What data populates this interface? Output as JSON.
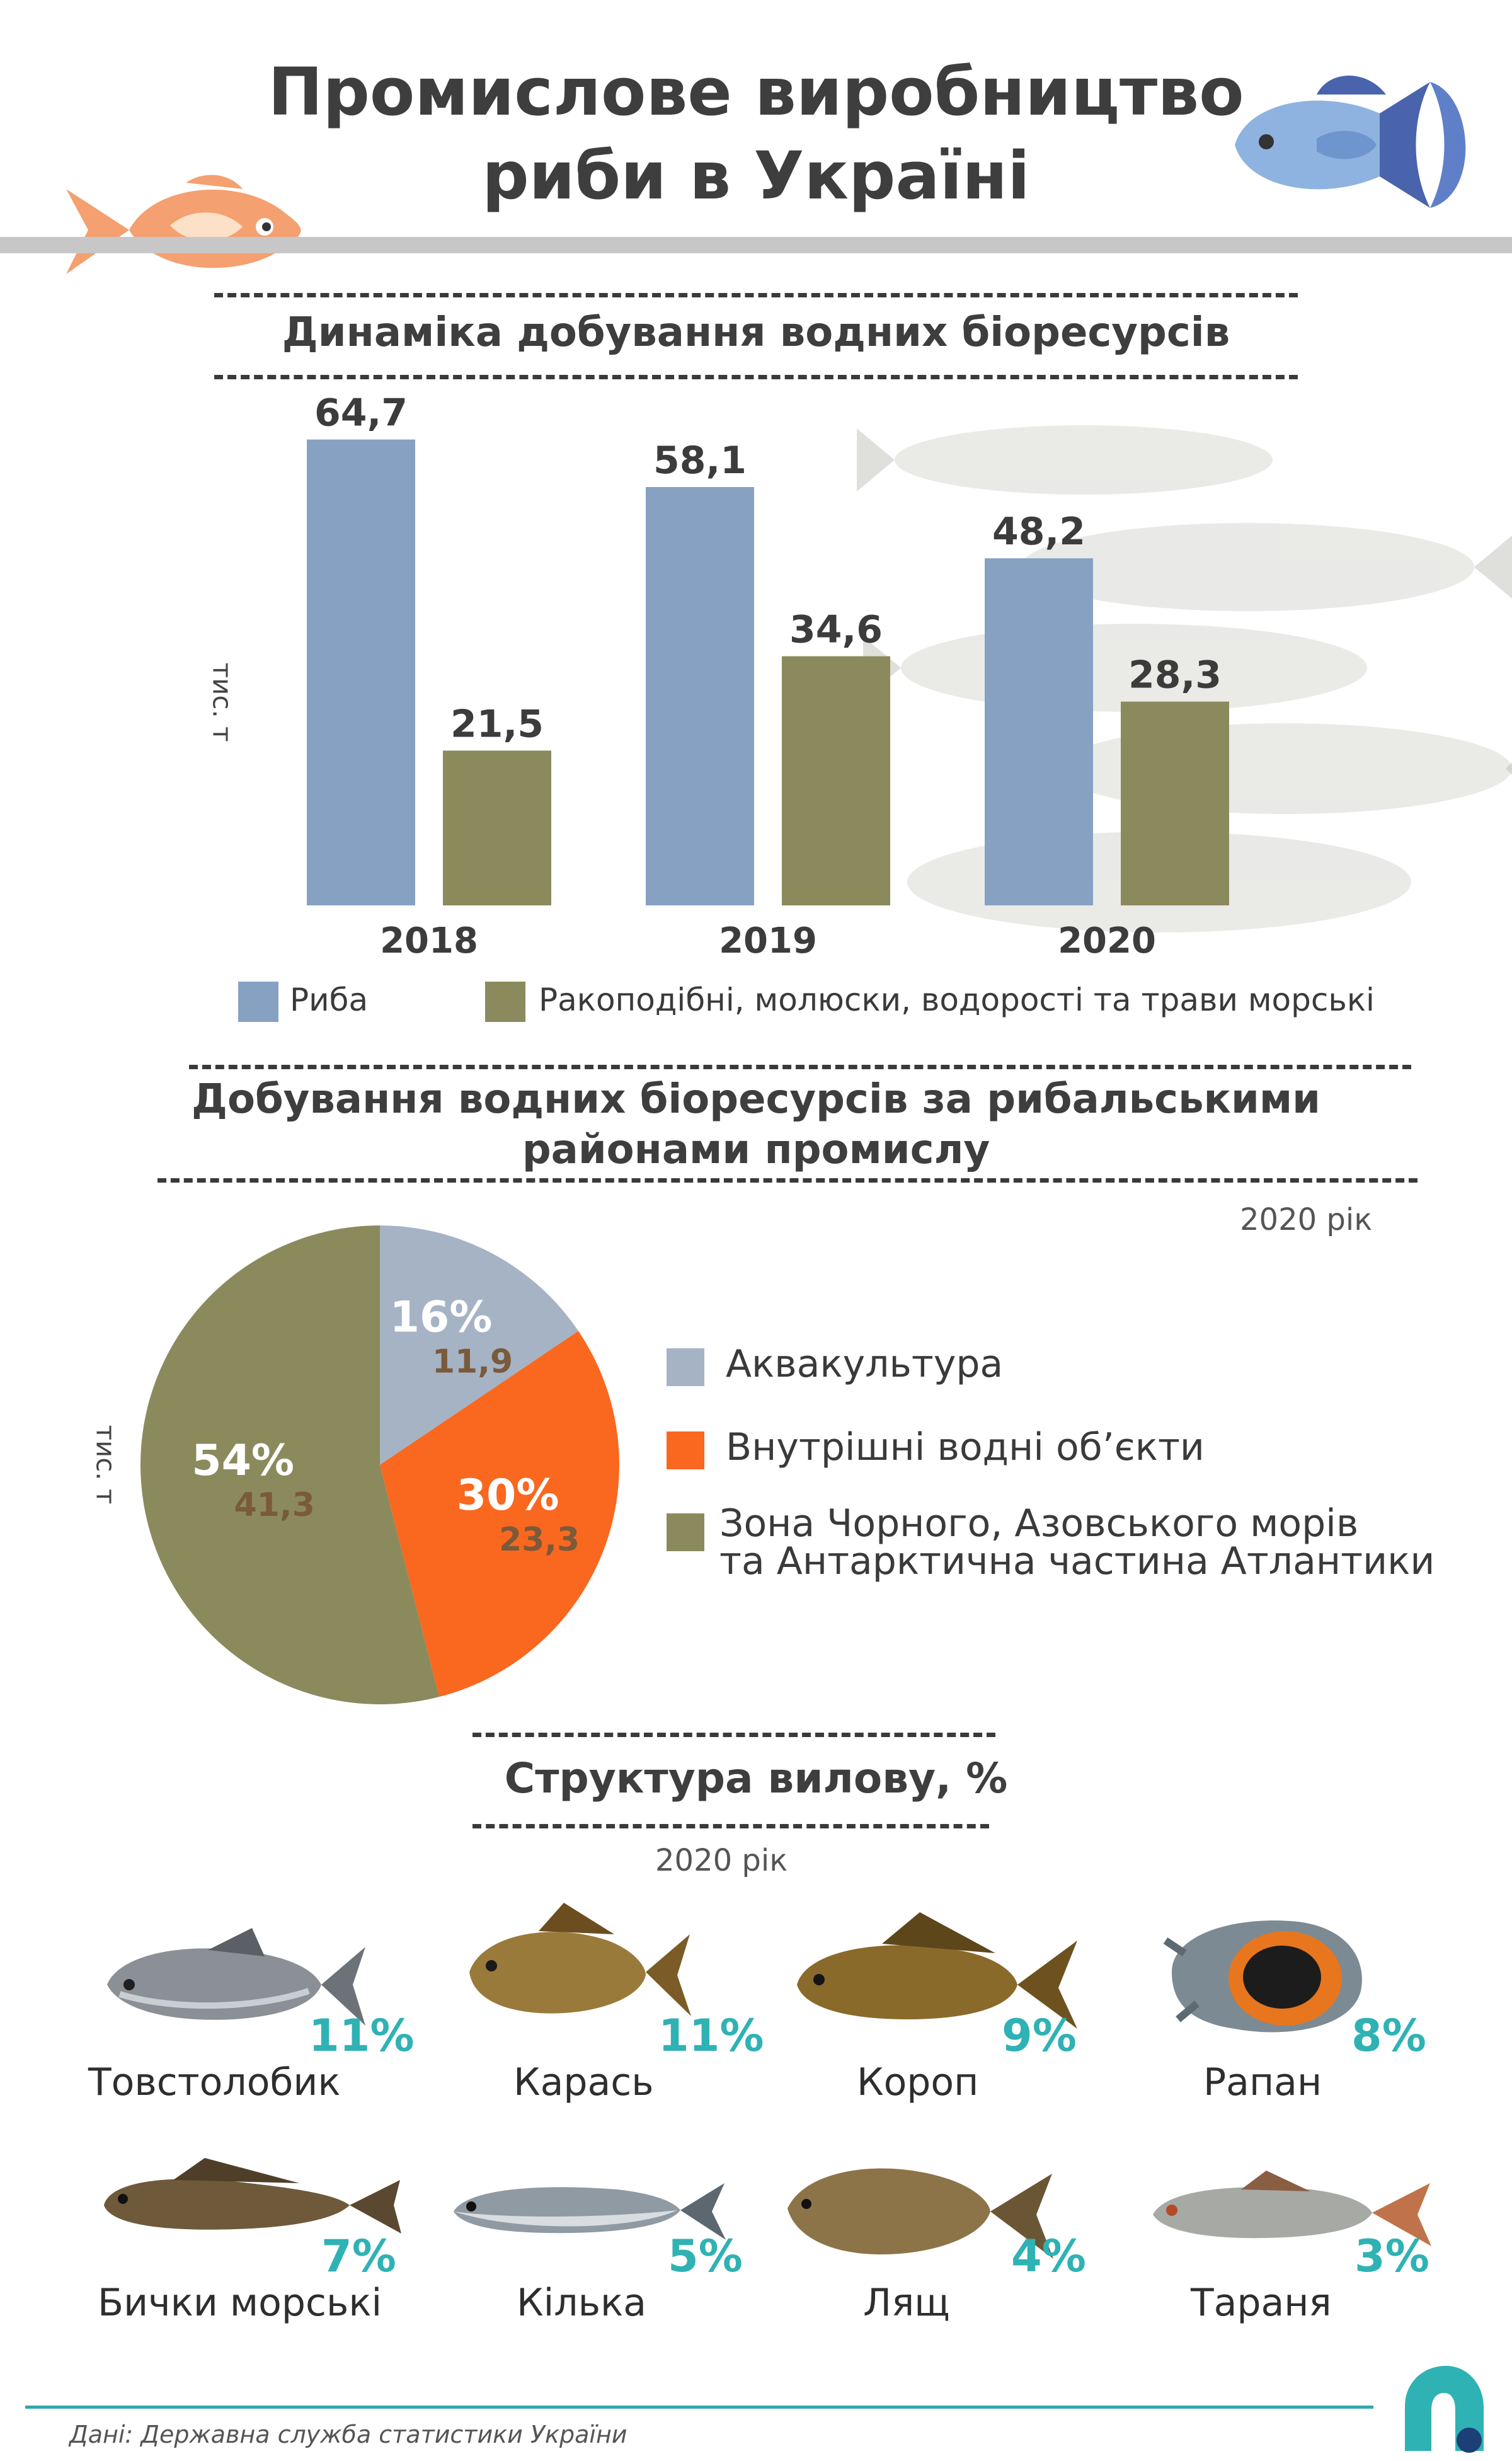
{
  "header": {
    "title_line1": "Промислове виробництво",
    "title_line2": "риби в Україні"
  },
  "section1": {
    "title": "Динаміка добування водних біоресурсів"
  },
  "section2": {
    "title_line1": "Добування водних біоресурсів за рибальськими",
    "title_line2": "районами промислу",
    "year_note": "2020 рік"
  },
  "section3": {
    "title": "Структура вилову, %",
    "year_note": "2020 рік",
    "items": [
      {
        "name": "Товстолобик",
        "pct": "11%",
        "icon": "bighead-carp-icon"
      },
      {
        "name": "Карась",
        "pct": "11%",
        "icon": "crucian-carp-icon"
      },
      {
        "name": "Короп",
        "pct": "9%",
        "icon": "carp-icon"
      },
      {
        "name": "Рапан",
        "pct": "8%",
        "icon": "rapana-shell-icon"
      },
      {
        "name": "Бички морські",
        "pct": "7%",
        "icon": "goby-icon"
      },
      {
        "name": "Кілька",
        "pct": "5%",
        "icon": "sprat-icon"
      },
      {
        "name": "Лящ",
        "pct": "4%",
        "icon": "bream-icon"
      },
      {
        "name": "Тараня",
        "pct": "3%",
        "icon": "roach-icon"
      }
    ]
  },
  "source": "Дані: Державна служба статистики України",
  "colors": {
    "fish_blue": "#87a1c3",
    "olive": "#8b8a5d",
    "orange": "#fa671f",
    "aqua_gray": "#a5b3c5",
    "teal": "#2fb2b4",
    "header_orange_fish": "#f4a070",
    "header_blue_fish": "#8fb3e0"
  },
  "chart_data": [
    {
      "type": "bar",
      "title": "Динаміка добування водних біоресурсів",
      "ylabel": "тис. т",
      "categories": [
        "2018",
        "2019",
        "2020"
      ],
      "series": [
        {
          "name": "Риба",
          "values": [
            64.7,
            58.1,
            48.2
          ],
          "labels": [
            "64,7",
            "58,1",
            "48,2"
          ],
          "color": "#87a1c3"
        },
        {
          "name": "Ракоподібні, молюски, водорості та трави морські",
          "values": [
            21.5,
            34.6,
            28.3
          ],
          "labels": [
            "21,5",
            "34,6",
            "28,3"
          ],
          "color": "#8b8a5d"
        }
      ],
      "ylim": [
        0,
        70
      ],
      "grid": false,
      "legend": "bottom"
    },
    {
      "type": "pie",
      "title": "Добування водних біоресурсів за рибальськими районами промислу",
      "unit": "тис. т",
      "slices": [
        {
          "name": "Аквакультура",
          "value": 11.9,
          "value_label": "11,9",
          "pct": 16,
          "pct_label": "16%",
          "color": "#a5b3c5"
        },
        {
          "name": "Внутрішні водні об’єкти",
          "value": 23.3,
          "value_label": "23,3",
          "pct": 30,
          "pct_label": "30%",
          "color": "#fa671f"
        },
        {
          "name_line1": "Зона Чорного, Азовського морів",
          "name_line2": "та Антарктична частина Атлантики",
          "value": 41.3,
          "value_label": "41,3",
          "pct": 54,
          "pct_label": "54%",
          "color": "#8b8a5d"
        }
      ],
      "legend": "right"
    }
  ]
}
